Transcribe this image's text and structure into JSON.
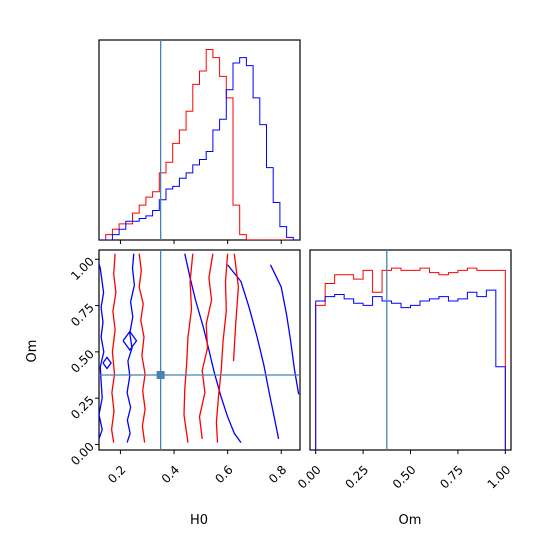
{
  "chart_data": {
    "type": "corner",
    "parameters": [
      "H0",
      "Om"
    ],
    "truths": {
      "H0": 0.35,
      "Om": 0.375
    },
    "truth_color": "#4682b4",
    "series_colors": {
      "red": "#ff0000",
      "blue": "#0000ff"
    },
    "panels": [
      {
        "id": "H0-hist",
        "type": "histogram",
        "param": "H0",
        "xlim": [
          0.12,
          0.87
        ],
        "xticks": [
          0.2,
          0.4,
          0.6,
          0.8
        ],
        "bin_width": 0.025,
        "bin_start": 0.12,
        "series": [
          {
            "color": "red",
            "counts": [
              0,
              0.02,
              0.04,
              0.06,
              0.06,
              0.1,
              0.13,
              0.16,
              0.18,
              0.25,
              0.29,
              0.36,
              0.41,
              0.48,
              0.58,
              0.63,
              0.71,
              0.68,
              0.61,
              0.53,
              0.13,
              0.02,
              0,
              0,
              0,
              0,
              0,
              0,
              0,
              0
            ]
          },
          {
            "color": "blue",
            "counts": [
              0,
              0,
              0.02,
              0.04,
              0.07,
              0.07,
              0.08,
              0.09,
              0.11,
              0.15,
              0.19,
              0.2,
              0.23,
              0.25,
              0.28,
              0.3,
              0.33,
              0.41,
              0.45,
              0.56,
              0.66,
              0.68,
              0.65,
              0.53,
              0.43,
              0.27,
              0.14,
              0.05,
              0.01,
              0
            ]
          }
        ]
      },
      {
        "id": "H0-Om-contour",
        "type": "contour",
        "xparam": "H0",
        "yparam": "Om",
        "xlim": [
          0.12,
          0.87
        ],
        "ylim": [
          -0.03,
          1.05
        ],
        "xticks": [
          0.2,
          0.4,
          0.6,
          0.8
        ],
        "yticks": [
          0.0,
          0.25,
          0.5,
          0.75,
          1.0
        ],
        "yticklabels": [
          "0.00",
          "0.25",
          "0.50",
          "0.75",
          "1.00"
        ],
        "contours": [
          {
            "color": "blue",
            "points": [
              [
                0.105,
                0.01
              ],
              [
                0.107,
                0.5
              ],
              [
                0.11,
                1.03
              ]
            ]
          },
          {
            "color": "blue",
            "points": [
              [
                0.115,
                1.0
              ],
              [
                0.125,
                0.95
              ],
              [
                0.137,
                0.82
              ],
              [
                0.128,
                0.74
              ],
              [
                0.135,
                0.66
              ],
              [
                0.128,
                0.58
              ],
              [
                0.138,
                0.5
              ],
              [
                0.125,
                0.42
              ],
              [
                0.128,
                0.34
              ],
              [
                0.132,
                0.25
              ],
              [
                0.12,
                0.16
              ],
              [
                0.132,
                0.08
              ],
              [
                0.12,
                0.03
              ]
            ]
          },
          {
            "color": "blue",
            "points": [
              [
                0.25,
                1.03
              ],
              [
                0.245,
                0.95
              ],
              [
                0.252,
                0.86
              ],
              [
                0.238,
                0.77
              ],
              [
                0.246,
                0.69
              ],
              [
                0.235,
                0.6
              ],
              [
                0.243,
                0.52
              ],
              [
                0.228,
                0.45
              ],
              [
                0.235,
                0.37
              ],
              [
                0.225,
                0.28
              ],
              [
                0.238,
                0.2
              ],
              [
                0.226,
                0.13
              ],
              [
                0.236,
                0.06
              ],
              [
                0.225,
                0.01
              ]
            ]
          },
          {
            "color": "blue",
            "points": [
              [
                0.44,
                1.03
              ],
              [
                0.46,
                0.9
              ],
              [
                0.48,
                0.78
              ],
              [
                0.51,
                0.63
              ],
              [
                0.53,
                0.51
              ],
              [
                0.55,
                0.39
              ],
              [
                0.575,
                0.26
              ],
              [
                0.6,
                0.15
              ],
              [
                0.625,
                0.06
              ],
              [
                0.65,
                0.01
              ]
            ]
          },
          {
            "color": "blue",
            "points": [
              [
                0.6,
                0.97
              ],
              [
                0.65,
                0.88
              ],
              [
                0.68,
                0.74
              ],
              [
                0.71,
                0.58
              ],
              [
                0.735,
                0.43
              ],
              [
                0.755,
                0.28
              ],
              [
                0.775,
                0.14
              ],
              [
                0.79,
                0.03
              ]
            ]
          },
          {
            "color": "blue",
            "points": [
              [
                0.76,
                0.97
              ],
              [
                0.8,
                0.85
              ],
              [
                0.82,
                0.7
              ],
              [
                0.835,
                0.56
              ],
              [
                0.85,
                0.4
              ],
              [
                0.865,
                0.27
              ]
            ]
          },
          {
            "color": "blue",
            "points": [
              [
                0.21,
                0.56
              ],
              [
                0.235,
                0.51
              ],
              [
                0.26,
                0.56
              ],
              [
                0.235,
                0.61
              ],
              [
                0.21,
                0.56
              ]
            ]
          },
          {
            "color": "blue",
            "points": [
              [
                0.135,
                0.44
              ],
              [
                0.15,
                0.41
              ],
              [
                0.165,
                0.44
              ],
              [
                0.15,
                0.47
              ],
              [
                0.135,
                0.44
              ]
            ]
          },
          {
            "color": "red",
            "points": [
              [
                0.18,
                1.03
              ],
              [
                0.175,
                0.92
              ],
              [
                0.183,
                0.82
              ],
              [
                0.172,
                0.72
              ],
              [
                0.18,
                0.62
              ],
              [
                0.17,
                0.5
              ],
              [
                0.178,
                0.38
              ],
              [
                0.168,
                0.28
              ],
              [
                0.176,
                0.18
              ],
              [
                0.167,
                0.08
              ],
              [
                0.175,
                0.01
              ]
            ]
          },
          {
            "color": "red",
            "points": [
              [
                0.27,
                1.03
              ],
              [
                0.278,
                0.94
              ],
              [
                0.27,
                0.85
              ],
              [
                0.285,
                0.76
              ],
              [
                0.276,
                0.67
              ],
              [
                0.288,
                0.58
              ],
              [
                0.28,
                0.48
              ],
              [
                0.292,
                0.38
              ],
              [
                0.283,
                0.29
              ],
              [
                0.292,
                0.19
              ],
              [
                0.282,
                0.1
              ],
              [
                0.29,
                0.01
              ]
            ]
          },
          {
            "color": "red",
            "points": [
              [
                0.47,
                1.03
              ],
              [
                0.46,
                0.88
              ],
              [
                0.465,
                0.73
              ],
              [
                0.452,
                0.58
              ],
              [
                0.447,
                0.43
              ],
              [
                0.44,
                0.3
              ],
              [
                0.437,
                0.16
              ],
              [
                0.445,
                0.08
              ],
              [
                0.452,
                0.01
              ]
            ]
          },
          {
            "color": "red",
            "points": [
              [
                0.6,
                1.03
              ],
              [
                0.592,
                0.88
              ],
              [
                0.595,
                0.72
              ],
              [
                0.583,
                0.56
              ],
              [
                0.576,
                0.4
              ],
              [
                0.566,
                0.26
              ],
              [
                0.558,
                0.12
              ],
              [
                0.562,
                0.01
              ]
            ]
          },
          {
            "color": "red",
            "points": [
              [
                0.545,
                1.03
              ],
              [
                0.53,
                0.9
              ],
              [
                0.54,
                0.78
              ],
              [
                0.52,
                0.65
              ],
              [
                0.525,
                0.52
              ],
              [
                0.505,
                0.4
              ],
              [
                0.515,
                0.28
              ],
              [
                0.495,
                0.15
              ],
              [
                0.505,
                0.03
              ]
            ]
          },
          {
            "color": "red",
            "points": [
              [
                0.625,
                1.03
              ],
              [
                0.64,
                0.85
              ],
              [
                0.63,
                0.65
              ],
              [
                0.622,
                0.45
              ]
            ]
          }
        ],
        "truth_marker": [
          0.35,
          0.375
        ]
      },
      {
        "id": "Om-hist",
        "type": "histogram",
        "param": "Om",
        "xlim": [
          -0.03,
          1.03
        ],
        "xticks": [
          0.0,
          0.25,
          0.5,
          0.75,
          1.0
        ],
        "xticklabels": [
          "0.00",
          "0.25",
          "0.50",
          "0.75",
          "1.00"
        ],
        "bin_width": 0.05,
        "bin_start": 0.0,
        "series": [
          {
            "color": "red",
            "counts": [
              0.66,
              0.76,
              0.8,
              0.8,
              0.78,
              0.82,
              0.72,
              0.82,
              0.83,
              0.82,
              0.82,
              0.83,
              0.81,
              0.8,
              0.81,
              0.82,
              0.83,
              0.82,
              0.82,
              0.82
            ]
          },
          {
            "color": "blue",
            "counts": [
              0.68,
              0.7,
              0.71,
              0.69,
              0.67,
              0.66,
              0.7,
              0.68,
              0.67,
              0.65,
              0.66,
              0.68,
              0.69,
              0.7,
              0.68,
              0.69,
              0.72,
              0.7,
              0.73,
              0.38
            ]
          }
        ]
      }
    ],
    "xlabels": {
      "H0": "H0",
      "Om": "Om"
    },
    "ylabels": {
      "Om": "Om"
    }
  }
}
